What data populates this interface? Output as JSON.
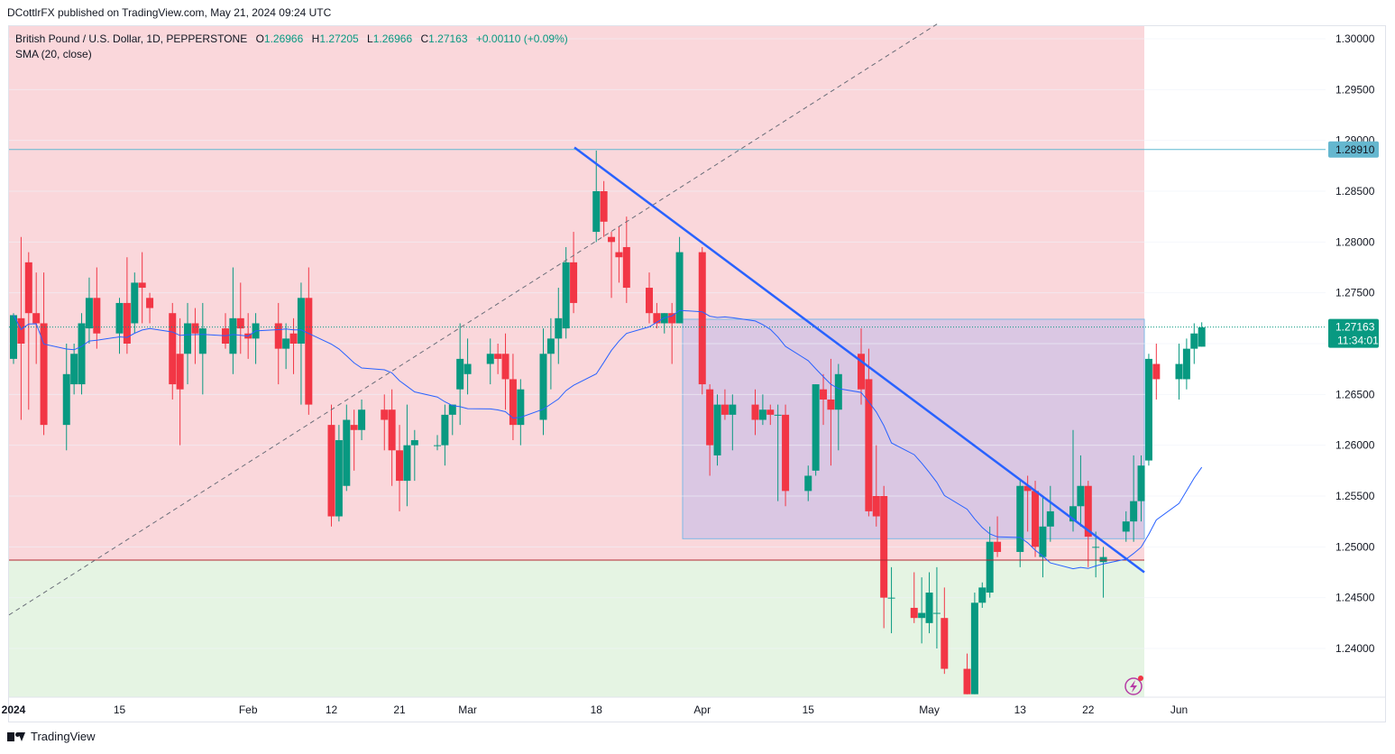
{
  "header": {
    "published_text": "DCottlrFX published on TradingView.com, May 21, 2024 09:24 UTC"
  },
  "legend": {
    "symbol": "British Pound / U.S. Dollar, 1D, PEPPERSTONE",
    "o_label": "O",
    "o_value": "1.26966",
    "h_label": "H",
    "h_value": "1.27205",
    "l_label": "L",
    "l_value": "1.26966",
    "c_label": "C",
    "c_value": "1.27163",
    "change": "+0.00110 (+0.09%)",
    "indicator": "SMA (20, close)"
  },
  "footer": {
    "brand": "TradingView",
    "logo_icon": "tradingview-logo-icon"
  },
  "colors": {
    "up": "#089981",
    "down": "#f23645",
    "sma": "#2962ff",
    "trendline": "#2962ff",
    "red_zone": "#fad7db",
    "green_zone": "#e5f4e3",
    "box": "#b3b3ee",
    "level_line": "#5fb8d2",
    "support_line": "#b22833"
  },
  "chart_data": {
    "type": "candlestick",
    "symbol": "British Pound / U.S. Dollar",
    "interval": "1D",
    "ylim": [
      1.2355,
      1.3015
    ],
    "y_ticks": [
      "1.30000",
      "1.29500",
      "1.29000",
      "1.28500",
      "1.28000",
      "1.27500",
      "1.27000",
      "1.26500",
      "1.26000",
      "1.25500",
      "1.25000",
      "1.24500",
      "1.24000"
    ],
    "x_ticks": [
      {
        "label": "2024",
        "bold": true,
        "date": "2024-01-01"
      },
      {
        "label": "15",
        "date": "2024-01-15"
      },
      {
        "label": "Feb",
        "date": "2024-02-01"
      },
      {
        "label": "12",
        "date": "2024-02-12"
      },
      {
        "label": "21",
        "date": "2024-02-21"
      },
      {
        "label": "Mar",
        "date": "2024-03-01"
      },
      {
        "label": "18",
        "date": "2024-03-18"
      },
      {
        "label": "Apr",
        "date": "2024-04-01"
      },
      {
        "label": "15",
        "date": "2024-04-15"
      },
      {
        "label": "May",
        "date": "2024-05-01"
      },
      {
        "label": "13",
        "date": "2024-05-13"
      },
      {
        "label": "22",
        "date": "2024-05-22"
      },
      {
        "label": "Jun",
        "date": "2024-06-03"
      }
    ],
    "price_badges": [
      {
        "label": "1.28910",
        "value": 1.2891,
        "type": "level"
      },
      {
        "label": "1.27163",
        "sub": "11:34:01",
        "value": 1.27163,
        "type": "last"
      }
    ],
    "candles": [
      {
        "date": "2024-01-01",
        "o": 1.2685,
        "h": 1.273,
        "l": 1.268,
        "c": 1.2728
      },
      {
        "date": "2024-01-02",
        "o": 1.2725,
        "h": 1.2805,
        "l": 1.2625,
        "c": 1.27
      },
      {
        "date": "2024-01-03",
        "o": 1.278,
        "h": 1.279,
        "l": 1.2635,
        "c": 1.273
      },
      {
        "date": "2024-01-04",
        "o": 1.273,
        "h": 1.277,
        "l": 1.268,
        "c": 1.272
      },
      {
        "date": "2024-01-05",
        "o": 1.272,
        "h": 1.277,
        "l": 1.261,
        "c": 1.262
      },
      {
        "date": "2024-01-08",
        "o": 1.262,
        "h": 1.27,
        "l": 1.2595,
        "c": 1.267
      },
      {
        "date": "2024-01-09",
        "o": 1.266,
        "h": 1.27,
        "l": 1.265,
        "c": 1.269
      },
      {
        "date": "2024-01-10",
        "o": 1.266,
        "h": 1.273,
        "l": 1.265,
        "c": 1.272
      },
      {
        "date": "2024-01-11",
        "o": 1.2715,
        "h": 1.2765,
        "l": 1.27,
        "c": 1.2745
      },
      {
        "date": "2024-01-12",
        "o": 1.2745,
        "h": 1.2775,
        "l": 1.2695,
        "c": 1.271
      },
      {
        "date": "2024-01-15",
        "o": 1.271,
        "h": 1.2745,
        "l": 1.269,
        "c": 1.274
      },
      {
        "date": "2024-01-16",
        "o": 1.274,
        "h": 1.2785,
        "l": 1.269,
        "c": 1.27
      },
      {
        "date": "2024-01-17",
        "o": 1.272,
        "h": 1.277,
        "l": 1.271,
        "c": 1.276
      },
      {
        "date": "2024-01-18",
        "o": 1.276,
        "h": 1.279,
        "l": 1.272,
        "c": 1.2755
      },
      {
        "date": "2024-01-19",
        "o": 1.2745,
        "h": 1.275,
        "l": 1.272,
        "c": 1.2735
      },
      {
        "date": "2024-01-22",
        "o": 1.273,
        "h": 1.274,
        "l": 1.2645,
        "c": 1.266
      },
      {
        "date": "2024-01-23",
        "o": 1.269,
        "h": 1.2725,
        "l": 1.26,
        "c": 1.2655
      },
      {
        "date": "2024-01-24",
        "o": 1.269,
        "h": 1.274,
        "l": 1.266,
        "c": 1.272
      },
      {
        "date": "2024-01-25",
        "o": 1.272,
        "h": 1.2735,
        "l": 1.268,
        "c": 1.271
      },
      {
        "date": "2024-01-26",
        "o": 1.269,
        "h": 1.274,
        "l": 1.265,
        "c": 1.2715
      },
      {
        "date": "2024-01-29",
        "o": 1.2715,
        "h": 1.273,
        "l": 1.2695,
        "c": 1.27
      },
      {
        "date": "2024-01-30",
        "o": 1.269,
        "h": 1.2775,
        "l": 1.267,
        "c": 1.2725
      },
      {
        "date": "2024-01-31",
        "o": 1.2725,
        "h": 1.276,
        "l": 1.269,
        "c": 1.2715
      },
      {
        "date": "2024-02-01",
        "o": 1.271,
        "h": 1.273,
        "l": 1.2685,
        "c": 1.2705
      },
      {
        "date": "2024-02-02",
        "o": 1.2705,
        "h": 1.273,
        "l": 1.268,
        "c": 1.272
      },
      {
        "date": "2024-02-05",
        "o": 1.272,
        "h": 1.274,
        "l": 1.266,
        "c": 1.2695
      },
      {
        "date": "2024-02-06",
        "o": 1.2695,
        "h": 1.272,
        "l": 1.2675,
        "c": 1.2705
      },
      {
        "date": "2024-02-07",
        "o": 1.271,
        "h": 1.2725,
        "l": 1.267,
        "c": 1.27
      },
      {
        "date": "2024-02-08",
        "o": 1.27,
        "h": 1.276,
        "l": 1.264,
        "c": 1.2745
      },
      {
        "date": "2024-02-09",
        "o": 1.2745,
        "h": 1.2775,
        "l": 1.263,
        "c": 1.264
      },
      {
        "date": "2024-02-12",
        "o": 1.262,
        "h": 1.264,
        "l": 1.252,
        "c": 1.253
      },
      {
        "date": "2024-02-13",
        "o": 1.253,
        "h": 1.262,
        "l": 1.2525,
        "c": 1.2605
      },
      {
        "date": "2024-02-14",
        "o": 1.256,
        "h": 1.264,
        "l": 1.2555,
        "c": 1.2625
      },
      {
        "date": "2024-02-15",
        "o": 1.262,
        "h": 1.2635,
        "l": 1.2575,
        "c": 1.2615
      },
      {
        "date": "2024-02-16",
        "o": 1.2615,
        "h": 1.2645,
        "l": 1.2605,
        "c": 1.2635
      },
      {
        "date": "2024-02-19",
        "o": 1.2635,
        "h": 1.265,
        "l": 1.2595,
        "c": 1.2625
      },
      {
        "date": "2024-02-20",
        "o": 1.2635,
        "h": 1.2655,
        "l": 1.256,
        "c": 1.2595
      },
      {
        "date": "2024-02-21",
        "o": 1.2595,
        "h": 1.262,
        "l": 1.2535,
        "c": 1.2565
      },
      {
        "date": "2024-02-22",
        "o": 1.2565,
        "h": 1.264,
        "l": 1.254,
        "c": 1.26
      },
      {
        "date": "2024-02-23",
        "o": 1.26,
        "h": 1.2615,
        "l": 1.2565,
        "c": 1.2605
      },
      {
        "date": "2024-02-26",
        "o": 1.26,
        "h": 1.261,
        "l": 1.2595,
        "c": 1.26
      },
      {
        "date": "2024-02-27",
        "o": 1.26,
        "h": 1.264,
        "l": 1.258,
        "c": 1.263
      },
      {
        "date": "2024-02-28",
        "o": 1.263,
        "h": 1.264,
        "l": 1.261,
        "c": 1.264
      },
      {
        "date": "2024-02-29",
        "o": 1.2655,
        "h": 1.272,
        "l": 1.262,
        "c": 1.2685
      },
      {
        "date": "2024-03-01",
        "o": 1.267,
        "h": 1.2705,
        "l": 1.265,
        "c": 1.268
      },
      {
        "date": "2024-03-04",
        "o": 1.268,
        "h": 1.2705,
        "l": 1.266,
        "c": 1.269
      },
      {
        "date": "2024-03-05",
        "o": 1.269,
        "h": 1.27,
        "l": 1.267,
        "c": 1.2685
      },
      {
        "date": "2024-03-06",
        "o": 1.269,
        "h": 1.271,
        "l": 1.2635,
        "c": 1.2665
      },
      {
        "date": "2024-03-07",
        "o": 1.2665,
        "h": 1.269,
        "l": 1.2605,
        "c": 1.262
      },
      {
        "date": "2024-03-08",
        "o": 1.262,
        "h": 1.2665,
        "l": 1.26,
        "c": 1.2655
      },
      {
        "date": "2024-03-11",
        "o": 1.2625,
        "h": 1.2715,
        "l": 1.261,
        "c": 1.269
      },
      {
        "date": "2024-03-12",
        "o": 1.269,
        "h": 1.2725,
        "l": 1.2655,
        "c": 1.2705
      },
      {
        "date": "2024-03-13",
        "o": 1.2705,
        "h": 1.2755,
        "l": 1.268,
        "c": 1.2725
      },
      {
        "date": "2024-03-14",
        "o": 1.2715,
        "h": 1.2795,
        "l": 1.2705,
        "c": 1.278
      },
      {
        "date": "2024-03-15",
        "o": 1.278,
        "h": 1.281,
        "l": 1.273,
        "c": 1.274
      },
      {
        "date": "2024-03-18",
        "o": 1.281,
        "h": 1.289,
        "l": 1.28,
        "c": 1.285
      },
      {
        "date": "2024-03-19",
        "o": 1.285,
        "h": 1.286,
        "l": 1.2805,
        "c": 1.282
      },
      {
        "date": "2024-03-20",
        "o": 1.2805,
        "h": 1.281,
        "l": 1.2745,
        "c": 1.28
      },
      {
        "date": "2024-03-21",
        "o": 1.279,
        "h": 1.2815,
        "l": 1.276,
        "c": 1.2785
      },
      {
        "date": "2024-03-22",
        "o": 1.2795,
        "h": 1.2825,
        "l": 1.274,
        "c": 1.2755
      },
      {
        "date": "2024-03-25",
        "o": 1.2755,
        "h": 1.277,
        "l": 1.272,
        "c": 1.273
      },
      {
        "date": "2024-03-26",
        "o": 1.273,
        "h": 1.274,
        "l": 1.2715,
        "c": 1.272
      },
      {
        "date": "2024-03-27",
        "o": 1.272,
        "h": 1.273,
        "l": 1.271,
        "c": 1.273
      },
      {
        "date": "2024-03-28",
        "o": 1.273,
        "h": 1.274,
        "l": 1.268,
        "c": 1.272
      },
      {
        "date": "2024-03-29",
        "o": 1.272,
        "h": 1.2805,
        "l": 1.272,
        "c": 1.279
      },
      {
        "date": "2024-04-01",
        "o": 1.279,
        "h": 1.2795,
        "l": 1.265,
        "c": 1.266
      },
      {
        "date": "2024-04-02",
        "o": 1.2655,
        "h": 1.266,
        "l": 1.257,
        "c": 1.26
      },
      {
        "date": "2024-04-03",
        "o": 1.259,
        "h": 1.265,
        "l": 1.258,
        "c": 1.264
      },
      {
        "date": "2024-04-04",
        "o": 1.264,
        "h": 1.2655,
        "l": 1.2625,
        "c": 1.263
      },
      {
        "date": "2024-04-05",
        "o": 1.263,
        "h": 1.265,
        "l": 1.2595,
        "c": 1.264
      },
      {
        "date": "2024-04-08",
        "o": 1.264,
        "h": 1.2655,
        "l": 1.261,
        "c": 1.2625
      },
      {
        "date": "2024-04-09",
        "o": 1.2625,
        "h": 1.265,
        "l": 1.262,
        "c": 1.2635
      },
      {
        "date": "2024-04-10",
        "o": 1.2635,
        "h": 1.264,
        "l": 1.262,
        "c": 1.263
      },
      {
        "date": "2024-04-11",
        "o": 1.263,
        "h": 1.264,
        "l": 1.2545,
        "c": 1.263
      },
      {
        "date": "2024-04-12",
        "o": 1.263,
        "h": 1.264,
        "l": 1.254,
        "c": 1.2555
      },
      {
        "date": "2024-04-15",
        "o": 1.2555,
        "h": 1.258,
        "l": 1.2545,
        "c": 1.257
      },
      {
        "date": "2024-04-16",
        "o": 1.2575,
        "h": 1.266,
        "l": 1.257,
        "c": 1.266
      },
      {
        "date": "2024-04-17",
        "o": 1.2655,
        "h": 1.267,
        "l": 1.262,
        "c": 1.2645
      },
      {
        "date": "2024-04-18",
        "o": 1.2645,
        "h": 1.2685,
        "l": 1.258,
        "c": 1.2635
      },
      {
        "date": "2024-04-19",
        "o": 1.2635,
        "h": 1.268,
        "l": 1.2595,
        "c": 1.267
      },
      {
        "date": "2024-04-22",
        "o": 1.269,
        "h": 1.2715,
        "l": 1.264,
        "c": 1.2655
      },
      {
        "date": "2024-04-23",
        "o": 1.2665,
        "h": 1.2695,
        "l": 1.253,
        "c": 1.2535
      },
      {
        "date": "2024-04-24",
        "o": 1.255,
        "h": 1.26,
        "l": 1.252,
        "c": 1.253
      },
      {
        "date": "2024-04-25",
        "o": 1.255,
        "h": 1.256,
        "l": 1.242,
        "c": 1.245
      },
      {
        "date": "2024-04-26",
        "o": 1.245,
        "h": 1.248,
        "l": 1.2415,
        "c": 1.245
      },
      {
        "date": "2024-04-29",
        "o": 1.244,
        "h": 1.2475,
        "l": 1.2425,
        "c": 1.243
      },
      {
        "date": "2024-04-30",
        "o": 1.243,
        "h": 1.247,
        "l": 1.2405,
        "c": 1.2435
      },
      {
        "date": "2024-05-01",
        "o": 1.2425,
        "h": 1.2475,
        "l": 1.2415,
        "c": 1.2455
      },
      {
        "date": "2024-05-02",
        "o": 1.2435,
        "h": 1.248,
        "l": 1.24,
        "c": 1.2435
      },
      {
        "date": "2024-05-03",
        "o": 1.243,
        "h": 1.246,
        "l": 1.2375,
        "c": 1.238
      },
      {
        "date": "2024-05-06",
        "o": 1.238,
        "h": 1.2395,
        "l": 1.2355,
        "c": 1.2355
      },
      {
        "date": "2024-05-07",
        "o": 1.2355,
        "h": 1.2455,
        "l": 1.2355,
        "c": 1.2445
      },
      {
        "date": "2024-05-08",
        "o": 1.2445,
        "h": 1.2465,
        "l": 1.244,
        "c": 1.246
      },
      {
        "date": "2024-05-09",
        "o": 1.2455,
        "h": 1.252,
        "l": 1.245,
        "c": 1.2505
      },
      {
        "date": "2024-05-10",
        "o": 1.2505,
        "h": 1.253,
        "l": 1.249,
        "c": 1.2495
      },
      {
        "date": "2024-05-13",
        "o": 1.2495,
        "h": 1.2565,
        "l": 1.248,
        "c": 1.256
      },
      {
        "date": "2024-05-14",
        "o": 1.256,
        "h": 1.257,
        "l": 1.2515,
        "c": 1.2555
      },
      {
        "date": "2024-05-15",
        "o": 1.2555,
        "h": 1.2565,
        "l": 1.249,
        "c": 1.25
      },
      {
        "date": "2024-05-16",
        "o": 1.249,
        "h": 1.255,
        "l": 1.247,
        "c": 1.252
      },
      {
        "date": "2024-05-17",
        "o": 1.252,
        "h": 1.256,
        "l": 1.2505,
        "c": 1.2535
      },
      {
        "date": "2024-05-20",
        "o": 1.2525,
        "h": 1.2615,
        "l": 1.2515,
        "c": 1.254
      },
      {
        "date": "2024-05-21",
        "o": 1.254,
        "h": 1.259,
        "l": 1.252,
        "c": 1.256
      },
      {
        "date": "2024-05-22",
        "o": 1.256,
        "h": 1.2565,
        "l": 1.248,
        "c": 1.251
      },
      {
        "date": "2024-05-23",
        "o": 1.25,
        "h": 1.2515,
        "l": 1.247,
        "c": 1.25
      },
      {
        "date": "2024-05-24",
        "o": 1.2485,
        "h": 1.25,
        "l": 1.245,
        "c": 1.249
      },
      {
        "date": "2024-05-27",
        "o": 1.2515,
        "h": 1.2535,
        "l": 1.2505,
        "c": 1.2525
      },
      {
        "date": "2024-05-28",
        "o": 1.2525,
        "h": 1.259,
        "l": 1.2505,
        "c": 1.2545
      },
      {
        "date": "2024-05-29",
        "o": 1.2545,
        "h": 1.259,
        "l": 1.2525,
        "c": 1.258
      },
      {
        "date": "2024-05-30",
        "o": 1.2585,
        "h": 1.269,
        "l": 1.258,
        "c": 1.2685
      },
      {
        "date": "2024-05-31",
        "o": 1.268,
        "h": 1.27,
        "l": 1.2645,
        "c": 1.2665
      },
      {
        "date": "2024-06-03",
        "o": 1.2665,
        "h": 1.27,
        "l": 1.2645,
        "c": 1.268
      },
      {
        "date": "2024-06-04",
        "o": 1.2665,
        "h": 1.2705,
        "l": 1.2655,
        "c": 1.2695
      },
      {
        "date": "2024-06-05",
        "o": 1.2695,
        "h": 1.272,
        "l": 1.268,
        "c": 1.271
      },
      {
        "date": "2024-06-06",
        "o": 1.2697,
        "h": 1.2721,
        "l": 1.2697,
        "c": 1.2716
      }
    ]
  }
}
